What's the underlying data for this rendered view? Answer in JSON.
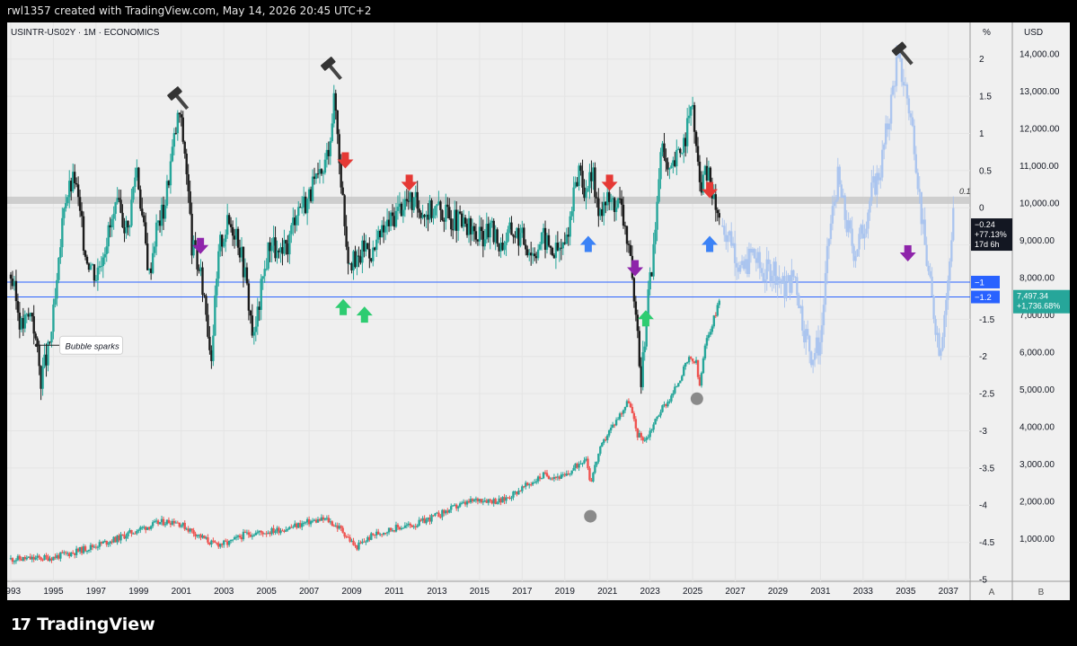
{
  "header": {
    "attribution": "rwl1357 created with TradingView.com, May 14, 2026 20:45 UTC+2"
  },
  "branding": {
    "logo_text": "TradingView",
    "logo_mark": "17"
  },
  "chart_data": {
    "type": "candlestick",
    "symbol_label": "USINTR-US02Y · 1M · ECONOMICS",
    "x_ticks": [
      "1993",
      "1995",
      "1997",
      "1999",
      "2001",
      "2003",
      "2005",
      "2007",
      "2009",
      "2011",
      "2013",
      "2015",
      "2017",
      "2019",
      "2021",
      "2023",
      "2025",
      "2027",
      "2029",
      "2031",
      "2033",
      "2035",
      "2037"
    ],
    "x_range": [
      1993,
      2037.6
    ],
    "axis_a": {
      "unit": "%",
      "label": "A",
      "range": [
        -5,
        2.25
      ],
      "ticks": [
        "2",
        "1.5",
        "1",
        "0.5",
        "0",
        "-0.5",
        "-1",
        "-1.5",
        "-2",
        "-2.5",
        "-3",
        "-3.5",
        "-4",
        "-4.5",
        "-5"
      ],
      "tick_values": [
        2,
        1.5,
        1,
        0.5,
        0,
        -0.5,
        -1,
        -1.5,
        -2,
        -2.5,
        -3,
        -3.5,
        -4,
        -4.5,
        -5
      ]
    },
    "axis_b": {
      "unit": "USD",
      "label": "B",
      "range": [
        0,
        14500
      ],
      "ticks": [
        "14,000.00",
        "13,000.00",
        "12,000.00",
        "11,000.00",
        "10,000.00",
        "9,000.00",
        "8,000.00",
        "7,000.00",
        "6,000.00",
        "5,000.00",
        "4,000.00",
        "3,000.00",
        "2,000.00",
        "1,000.00"
      ],
      "tick_values": [
        14000,
        13000,
        12000,
        11000,
        10000,
        9000,
        8000,
        7000,
        6000,
        5000,
        4000,
        3000,
        2000,
        1000
      ]
    },
    "spread_series_points": [
      [
        1993.0,
        -0.9
      ],
      [
        1993.5,
        -1.6
      ],
      [
        1994.0,
        -1.4
      ],
      [
        1994.4,
        -2.3
      ],
      [
        1994.8,
        -1.9
      ],
      [
        1995.2,
        -1.0
      ],
      [
        1995.5,
        0.1
      ],
      [
        1996.0,
        0.4
      ],
      [
        1996.5,
        -0.6
      ],
      [
        1997.0,
        -0.9
      ],
      [
        1997.5,
        -0.4
      ],
      [
        1998.0,
        0.0
      ],
      [
        1998.5,
        -0.3
      ],
      [
        1998.9,
        0.6
      ],
      [
        1999.2,
        -0.2
      ],
      [
        1999.5,
        -0.9
      ],
      [
        1999.8,
        -0.3
      ],
      [
        2000.2,
        0.0
      ],
      [
        2000.6,
        0.8
      ],
      [
        2000.9,
        1.3
      ],
      [
        2001.2,
        0.7
      ],
      [
        2001.5,
        -0.5
      ],
      [
        2001.8,
        -0.8
      ],
      [
        2002.1,
        -1.2
      ],
      [
        2002.4,
        -2.0
      ],
      [
        2002.8,
        -0.5
      ],
      [
        2003.2,
        -0.2
      ],
      [
        2003.6,
        -0.3
      ],
      [
        2004.0,
        -0.9
      ],
      [
        2004.4,
        -1.8
      ],
      [
        2004.8,
        -1.0
      ],
      [
        2005.2,
        -0.4
      ],
      [
        2005.6,
        -0.7
      ],
      [
        2006.0,
        -0.5
      ],
      [
        2006.4,
        0.0
      ],
      [
        2006.9,
        0.1
      ],
      [
        2007.2,
        0.3
      ],
      [
        2007.6,
        0.4
      ],
      [
        2007.9,
        0.8
      ],
      [
        2008.2,
        1.5
      ],
      [
        2008.5,
        0.4
      ],
      [
        2008.8,
        -0.6
      ],
      [
        2009.2,
        -0.8
      ],
      [
        2009.6,
        -0.5
      ],
      [
        2010.0,
        -0.6
      ],
      [
        2010.5,
        -0.3
      ],
      [
        2011.0,
        -0.1
      ],
      [
        2011.5,
        0.1
      ],
      [
        2012.0,
        0.05
      ],
      [
        2012.5,
        -0.05
      ],
      [
        2013.0,
        0.0
      ],
      [
        2013.5,
        -0.1
      ],
      [
        2014.0,
        -0.2
      ],
      [
        2014.5,
        -0.3
      ],
      [
        2015.0,
        -0.4
      ],
      [
        2015.5,
        -0.3
      ],
      [
        2016.0,
        -0.5
      ],
      [
        2016.5,
        -0.3
      ],
      [
        2017.0,
        -0.4
      ],
      [
        2017.5,
        -0.6
      ],
      [
        2018.0,
        -0.4
      ],
      [
        2018.5,
        -0.6
      ],
      [
        2019.0,
        -0.5
      ],
      [
        2019.4,
        0.1
      ],
      [
        2019.7,
        0.6
      ],
      [
        2020.0,
        0.1
      ],
      [
        2020.3,
        0.5
      ],
      [
        2020.5,
        0.0
      ],
      [
        2021.0,
        0.1
      ],
      [
        2021.6,
        0.05
      ],
      [
        2022.0,
        -0.5
      ],
      [
        2022.3,
        -1.5
      ],
      [
        2022.6,
        -2.3
      ],
      [
        2022.9,
        -1.2
      ],
      [
        2023.2,
        -0.5
      ],
      [
        2023.5,
        0.8
      ],
      [
        2023.9,
        0.4
      ],
      [
        2024.3,
        0.7
      ],
      [
        2024.7,
        1.0
      ],
      [
        2025.0,
        1.4
      ],
      [
        2025.3,
        0.3
      ],
      [
        2025.7,
        0.5
      ],
      [
        2026.0,
        0.1
      ],
      [
        2026.3,
        -0.24
      ]
    ],
    "sp500_points": [
      [
        1993.0,
        450
      ],
      [
        1994.0,
        460
      ],
      [
        1995.0,
        500
      ],
      [
        1996.0,
        640
      ],
      [
        1997.0,
        820
      ],
      [
        1998.0,
        1000
      ],
      [
        1999.0,
        1250
      ],
      [
        2000.0,
        1430
      ],
      [
        2000.7,
        1480
      ],
      [
        2001.5,
        1200
      ],
      [
        2002.5,
        850
      ],
      [
        2003.2,
        870
      ],
      [
        2004.0,
        1120
      ],
      [
        2005.0,
        1180
      ],
      [
        2006.0,
        1280
      ],
      [
        2007.0,
        1450
      ],
      [
        2007.8,
        1520
      ],
      [
        2008.5,
        1250
      ],
      [
        2009.2,
        760
      ],
      [
        2010.0,
        1100
      ],
      [
        2011.0,
        1280
      ],
      [
        2012.0,
        1380
      ],
      [
        2013.0,
        1620
      ],
      [
        2014.0,
        1880
      ],
      [
        2015.0,
        2060
      ],
      [
        2016.0,
        2000
      ],
      [
        2017.0,
        2350
      ],
      [
        2018.0,
        2700
      ],
      [
        2019.0,
        2650
      ],
      [
        2020.0,
        3200
      ],
      [
        2020.2,
        2500
      ],
      [
        2020.6,
        3300
      ],
      [
        2021.0,
        3800
      ],
      [
        2022.0,
        4700
      ],
      [
        2022.4,
        3800
      ],
      [
        2022.8,
        3650
      ],
      [
        2023.5,
        4450
      ],
      [
        2024.0,
        4800
      ],
      [
        2024.8,
        5800
      ],
      [
        2025.2,
        5700
      ],
      [
        2025.3,
        4950
      ],
      [
        2025.6,
        6200
      ],
      [
        2026.0,
        6900
      ],
      [
        2026.3,
        7497.34
      ]
    ],
    "projection_points": [
      [
        2026.3,
        -0.2
      ],
      [
        2026.8,
        -0.4
      ],
      [
        2027.3,
        -0.9
      ],
      [
        2027.8,
        -0.6
      ],
      [
        2028.3,
        -0.9
      ],
      [
        2028.8,
        -0.8
      ],
      [
        2029.3,
        -1.1
      ],
      [
        2029.8,
        -0.9
      ],
      [
        2030.2,
        -1.6
      ],
      [
        2030.6,
        -2.0
      ],
      [
        2031.0,
        -1.8
      ],
      [
        2031.4,
        -0.4
      ],
      [
        2031.8,
        0.4
      ],
      [
        2032.2,
        -0.2
      ],
      [
        2032.6,
        -0.6
      ],
      [
        2033.0,
        -0.3
      ],
      [
        2033.4,
        0.2
      ],
      [
        2033.8,
        0.5
      ],
      [
        2034.2,
        1.2
      ],
      [
        2034.6,
        2.0
      ],
      [
        2035.0,
        1.6
      ],
      [
        2035.4,
        0.9
      ],
      [
        2035.8,
        -0.3
      ],
      [
        2036.2,
        -1.2
      ],
      [
        2036.6,
        -1.9
      ],
      [
        2037.0,
        -1.0
      ],
      [
        2037.3,
        0.3
      ]
    ],
    "horizontal_lines": [
      {
        "value": -1.0,
        "label": "−1",
        "color": "#2962ff"
      },
      {
        "value": -1.2,
        "label": "−1.2",
        "color": "#2962ff"
      }
    ],
    "resistance_band": {
      "value": 0.1,
      "label": "0.1"
    },
    "last_price_spread": {
      "value": "−0.24",
      "change": "+77.13%",
      "countdown": "17d 6h"
    },
    "last_price_index": {
      "value": "7,497.34",
      "change": "+1,736.68%"
    },
    "annotations": [
      {
        "type": "hammer",
        "x": 2000.8,
        "y": 1.5
      },
      {
        "type": "hammer",
        "x": 2008.0,
        "y": 1.9
      },
      {
        "type": "hammer",
        "x": 2034.8,
        "y": 2.1
      },
      {
        "type": "arrow-down-red",
        "x": 2008.7,
        "y": 0.6
      },
      {
        "type": "arrow-down-red",
        "x": 2011.7,
        "y": 0.3
      },
      {
        "type": "arrow-down-red",
        "x": 2021.1,
        "y": 0.3
      },
      {
        "type": "arrow-down-red",
        "x": 2025.8,
        "y": 0.2
      },
      {
        "type": "arrow-down-purple",
        "x": 2001.9,
        "y": -0.55
      },
      {
        "type": "arrow-down-purple",
        "x": 2022.3,
        "y": -0.85
      },
      {
        "type": "arrow-down-purple",
        "x": 2035.1,
        "y": -0.65
      },
      {
        "type": "arrow-up-green",
        "x": 2008.6,
        "y": -1.3
      },
      {
        "type": "arrow-up-green",
        "x": 2009.6,
        "y": -1.4
      },
      {
        "type": "arrow-up-green",
        "x": 2022.8,
        "y": -1.45
      },
      {
        "type": "arrow-up-blue",
        "x": 2020.1,
        "y": -0.45
      },
      {
        "type": "arrow-up-blue",
        "x": 2025.8,
        "y": -0.45
      },
      {
        "type": "circle-gray",
        "x": 2020.2,
        "y": 1600
      },
      {
        "type": "circle-gray",
        "x": 2025.2,
        "y": 4750
      }
    ],
    "callout": {
      "text": "Bubble sparks",
      "x": 1995.3,
      "y": -1.85
    }
  }
}
